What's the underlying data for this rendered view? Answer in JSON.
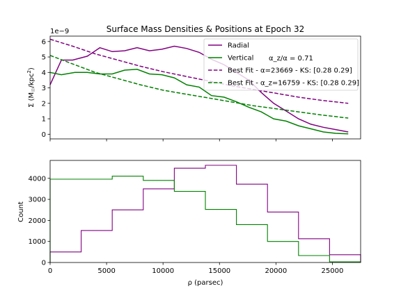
{
  "title": "Surface Mass Densities & Positions at Epoch 32",
  "colors": {
    "radial": "#800080",
    "vertical": "#008000",
    "axis": "#000000"
  },
  "chart_data": [
    {
      "type": "line",
      "title": "Surface Mass Densities & Positions at Epoch 32",
      "ylabel": "Σ (M☉/kpc²)",
      "offset_text": "1e−9",
      "xlim": [
        0,
        27500
      ],
      "ylim": [
        -0.3,
        6.35
      ],
      "yticks": [
        0,
        1,
        2,
        3,
        4,
        5,
        6
      ],
      "xticks": [
        0,
        5000,
        10000,
        15000,
        20000,
        25000
      ],
      "legend": "top-right",
      "legend_note": "α_z/α = 0.71",
      "series": [
        {
          "name": "Radial",
          "style": "solid",
          "color": "#800080",
          "x": [
            0,
            1000,
            2000,
            3300,
            4400,
            5500,
            6600,
            7700,
            8800,
            9900,
            11000,
            12100,
            13200,
            14300,
            15400,
            16500,
            17600,
            18700,
            19800,
            20900,
            22000,
            23100,
            24200,
            25300,
            26400
          ],
          "y": [
            3.2,
            4.8,
            4.8,
            5.05,
            5.6,
            5.35,
            5.4,
            5.6,
            5.4,
            5.5,
            5.7,
            5.55,
            5.3,
            4.85,
            4.5,
            4.0,
            3.5,
            2.7,
            2.0,
            1.5,
            1.0,
            0.65,
            0.45,
            0.3,
            0.15
          ]
        },
        {
          "name": "Vertical",
          "style": "solid",
          "color": "#008000",
          "x": [
            0,
            1000,
            2200,
            3300,
            4400,
            5500,
            6600,
            7700,
            8800,
            9900,
            11000,
            12100,
            13200,
            14300,
            15400,
            16500,
            17600,
            18700,
            19800,
            20900,
            22000,
            23100,
            24200,
            25300,
            26400
          ],
          "y": [
            4.0,
            3.85,
            4.0,
            4.0,
            3.9,
            3.9,
            4.15,
            4.2,
            3.9,
            3.85,
            3.65,
            3.2,
            3.05,
            2.5,
            2.4,
            2.1,
            1.75,
            1.45,
            1.0,
            0.85,
            0.55,
            0.35,
            0.15,
            0.06,
            0.03
          ]
        },
        {
          "name": "Best Fit - α=23669 - KS: [0.28 0.29]",
          "style": "dashed",
          "color": "#800080",
          "x": [
            0,
            2000,
            4000,
            6000,
            8000,
            10000,
            12000,
            14000,
            16000,
            18000,
            20000,
            22000,
            24000,
            26400
          ],
          "y": [
            6.15,
            5.7,
            5.2,
            4.8,
            4.4,
            4.05,
            3.75,
            3.45,
            3.15,
            2.9,
            2.65,
            2.4,
            2.2,
            2.0
          ]
        },
        {
          "name": "Best Fit - α_z=16759 - KS: [0.28 0.29]",
          "style": "dashed",
          "color": "#008000",
          "x": [
            0,
            2000,
            4000,
            6000,
            8000,
            10000,
            12000,
            14000,
            16000,
            18000,
            20000,
            22000,
            24000,
            26400
          ],
          "y": [
            5.1,
            4.55,
            4.0,
            3.6,
            3.2,
            2.85,
            2.6,
            2.35,
            2.1,
            1.85,
            1.65,
            1.45,
            1.25,
            1.05
          ]
        }
      ]
    },
    {
      "type": "histogram",
      "xlabel": "ρ (parsec)",
      "ylabel": "Count",
      "xlim": [
        0,
        27500
      ],
      "ylim": [
        0,
        4850
      ],
      "yticks": [
        0,
        1000,
        2000,
        3000,
        4000
      ],
      "xticks": [
        0,
        5000,
        10000,
        15000,
        20000,
        25000
      ],
      "bin_edges": [
        0,
        2750,
        5500,
        8250,
        11000,
        13750,
        16500,
        19250,
        22000,
        24750,
        27500
      ],
      "series": [
        {
          "name": "Radial",
          "color": "#800080",
          "counts": [
            500,
            1520,
            2500,
            3500,
            4480,
            4620,
            3720,
            2400,
            1130,
            370
          ]
        },
        {
          "name": "Vertical",
          "color": "#008000",
          "counts": [
            3960,
            3960,
            4100,
            3900,
            3380,
            2520,
            1800,
            1000,
            330,
            30
          ]
        }
      ]
    }
  ]
}
